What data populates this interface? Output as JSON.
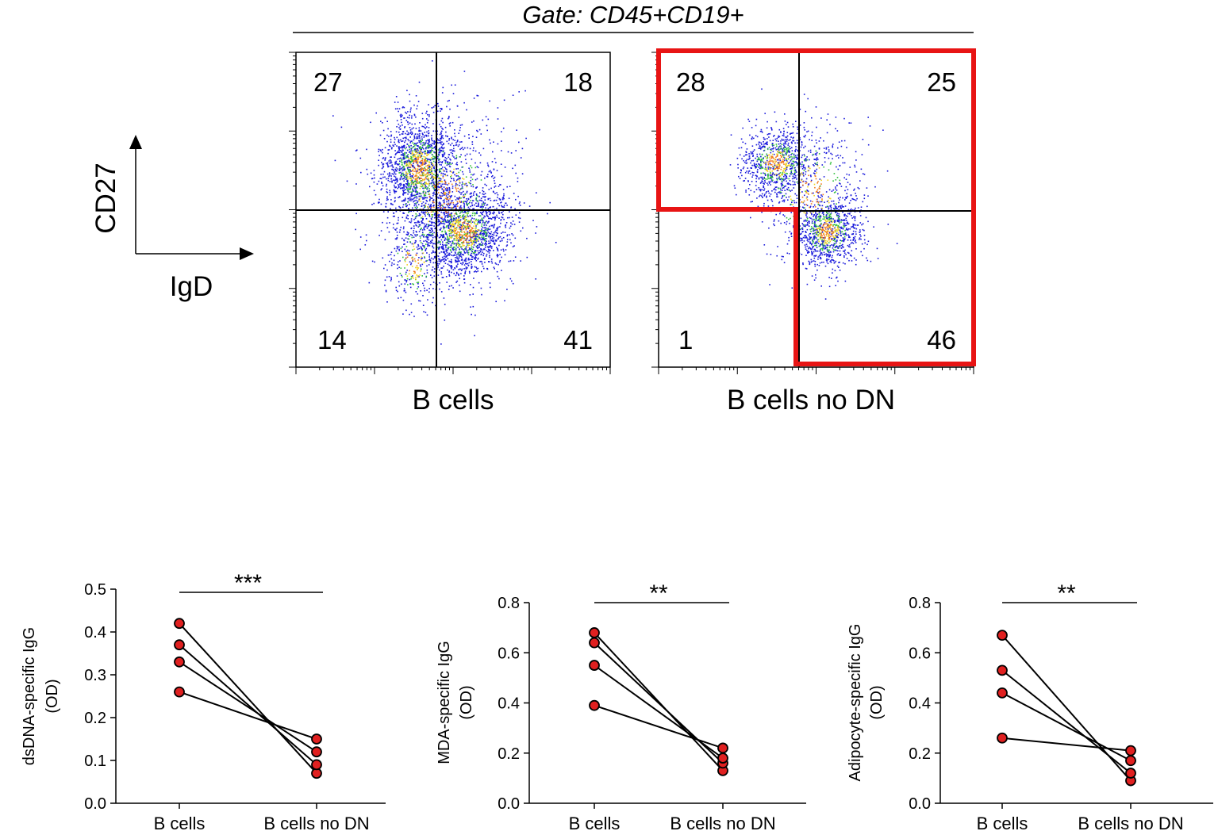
{
  "header": {
    "gate_label": "Gate: CD45+CD19+"
  },
  "axes_indicator": {
    "y_label": "CD27",
    "x_label": "IgD"
  },
  "flow_panels": [
    {
      "name": "B cells",
      "quadrants": {
        "upper_left": "27",
        "upper_right": "18",
        "lower_left": "14",
        "lower_right": "41"
      },
      "gated": false
    },
    {
      "name": "B cells no DN",
      "quadrants": {
        "upper_left": "28",
        "upper_right": "25",
        "lower_left": "1",
        "lower_right": "46"
      },
      "gated": true
    }
  ],
  "colors": {
    "gate": "#e81414",
    "dot_fill": "#e02020",
    "dot_cold": "#1a1adb",
    "dot_warm": "#2fbf3a",
    "dot_hot": "#f0d21e",
    "dot_core": "#f07a1e"
  },
  "chart_data": [
    {
      "type": "scatter",
      "title": "",
      "categories": [
        "B cells",
        "B cells no DN"
      ],
      "ylabel_line1": "dsDNA-specific IgG",
      "ylabel_line2": "(OD)",
      "ylim": [
        0,
        0.5
      ],
      "yticks": [
        0.0,
        0.1,
        0.2,
        0.3,
        0.4,
        0.5
      ],
      "ytick_labels": [
        "0.0",
        "0.1",
        "0.2",
        "0.3",
        "0.4",
        "0.5"
      ],
      "pairs": [
        [
          0.42,
          0.07
        ],
        [
          0.37,
          0.09
        ],
        [
          0.33,
          0.12
        ],
        [
          0.26,
          0.15
        ]
      ],
      "significance": "***"
    },
    {
      "type": "scatter",
      "title": "",
      "categories": [
        "B cells",
        "B cells no DN"
      ],
      "ylabel_line1": "MDA-specific IgG",
      "ylabel_line2": "(OD)",
      "ylim": [
        0,
        0.8
      ],
      "yticks": [
        0.0,
        0.2,
        0.4,
        0.6,
        0.8
      ],
      "ytick_labels": [
        "0.0",
        "0.2",
        "0.4",
        "0.6",
        "0.8"
      ],
      "pairs": [
        [
          0.68,
          0.13
        ],
        [
          0.64,
          0.16
        ],
        [
          0.55,
          0.18
        ],
        [
          0.39,
          0.22
        ]
      ],
      "significance": "**"
    },
    {
      "type": "scatter",
      "title": "",
      "categories": [
        "B cells",
        "B cells no DN"
      ],
      "ylabel_line1": "Adipocyte-specific IgG",
      "ylabel_line2": "(OD)",
      "ylim": [
        0,
        0.8
      ],
      "yticks": [
        0.0,
        0.2,
        0.4,
        0.6,
        0.8
      ],
      "ytick_labels": [
        "0.0",
        "0.2",
        "0.4",
        "0.6",
        "0.8"
      ],
      "pairs": [
        [
          0.67,
          0.09
        ],
        [
          0.53,
          0.12
        ],
        [
          0.44,
          0.17
        ],
        [
          0.26,
          0.21
        ]
      ],
      "significance": "**"
    }
  ]
}
